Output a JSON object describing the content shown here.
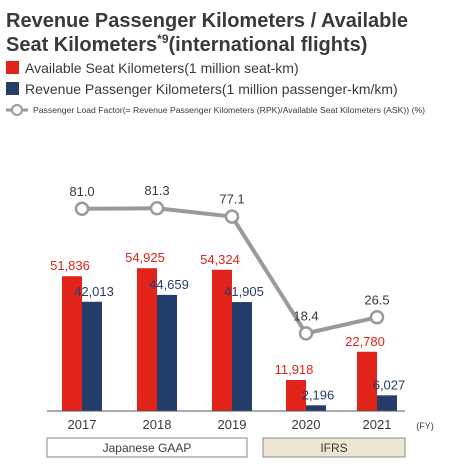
{
  "chart_data": {
    "type": "bar",
    "title": "Revenue Passenger Kilometers / Available Seat Kilometers",
    "title_superscript": "*9",
    "title_suffix": "(international flights)",
    "unit_label": "(FY)",
    "categories": [
      "2017",
      "2018",
      "2019",
      "2020",
      "2021"
    ],
    "series": [
      {
        "name": "Available Seat Kilometers(1 million seat-km)",
        "type": "bar",
        "color": "#e2231a",
        "label_color": "#e2231a",
        "values": [
          51836,
          54925,
          54324,
          11918,
          22780
        ],
        "labels": [
          "51,836",
          "54,925",
          "54,324",
          "11,918",
          "22,780"
        ]
      },
      {
        "name": "Revenue Passenger Kilometers(1 million passenger-km/km)",
        "type": "bar",
        "color": "#243d6b",
        "label_color": "#243d6b",
        "values": [
          42013,
          44659,
          41905,
          2196,
          6027
        ],
        "labels": [
          "42,013",
          "44,659",
          "41,905",
          "2,196",
          "6,027"
        ]
      },
      {
        "name": "Passenger Load Factor(= Revenue Passenger Kilometers (RPK)/Available Seat Kilometers (ASK)) (%)",
        "type": "line",
        "color": "#9a9a9a",
        "values": [
          81.0,
          81.3,
          77.1,
          18.4,
          26.5
        ],
        "labels": [
          "81.0",
          "81.3",
          "77.1",
          "18.4",
          "26.5"
        ]
      }
    ],
    "ylim_bars": [
      0,
      90000
    ],
    "ylim_line": [
      0,
      100
    ],
    "grid": false,
    "legend_position": "top-left",
    "accounting_groups": [
      {
        "label": "Japanese GAAP",
        "from": 0,
        "to": 2,
        "fill": "#ffffff"
      },
      {
        "label": "IFRS",
        "from": 3,
        "to": 4,
        "fill": "#ede6d3"
      }
    ]
  }
}
